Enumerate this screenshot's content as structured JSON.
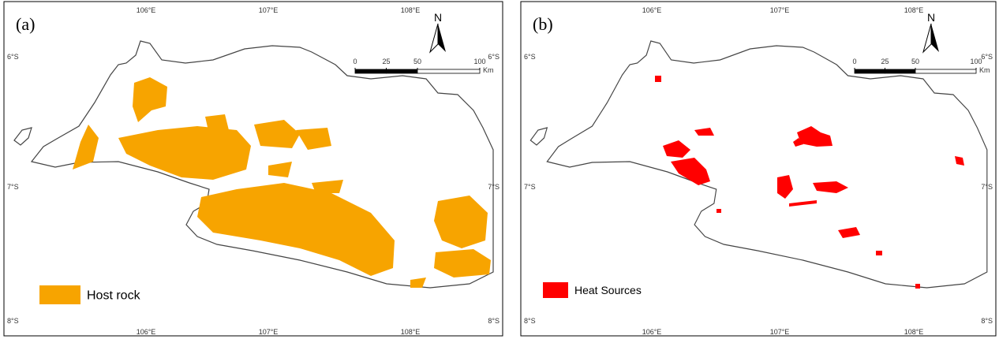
{
  "panels": [
    {
      "label": "(a)",
      "legend": "Host rock",
      "color": "#f7a400"
    },
    {
      "label": "(b)",
      "legend": "Heat Sources",
      "color": "#ff0000"
    }
  ],
  "graticule": {
    "lon": [
      "106°E",
      "107°E",
      "108°E"
    ],
    "lat": [
      "6°S",
      "7°S",
      "8°S"
    ]
  },
  "north": "N",
  "scale_bar": {
    "ticks": [
      0,
      25,
      50,
      100
    ],
    "unit": "Km"
  }
}
